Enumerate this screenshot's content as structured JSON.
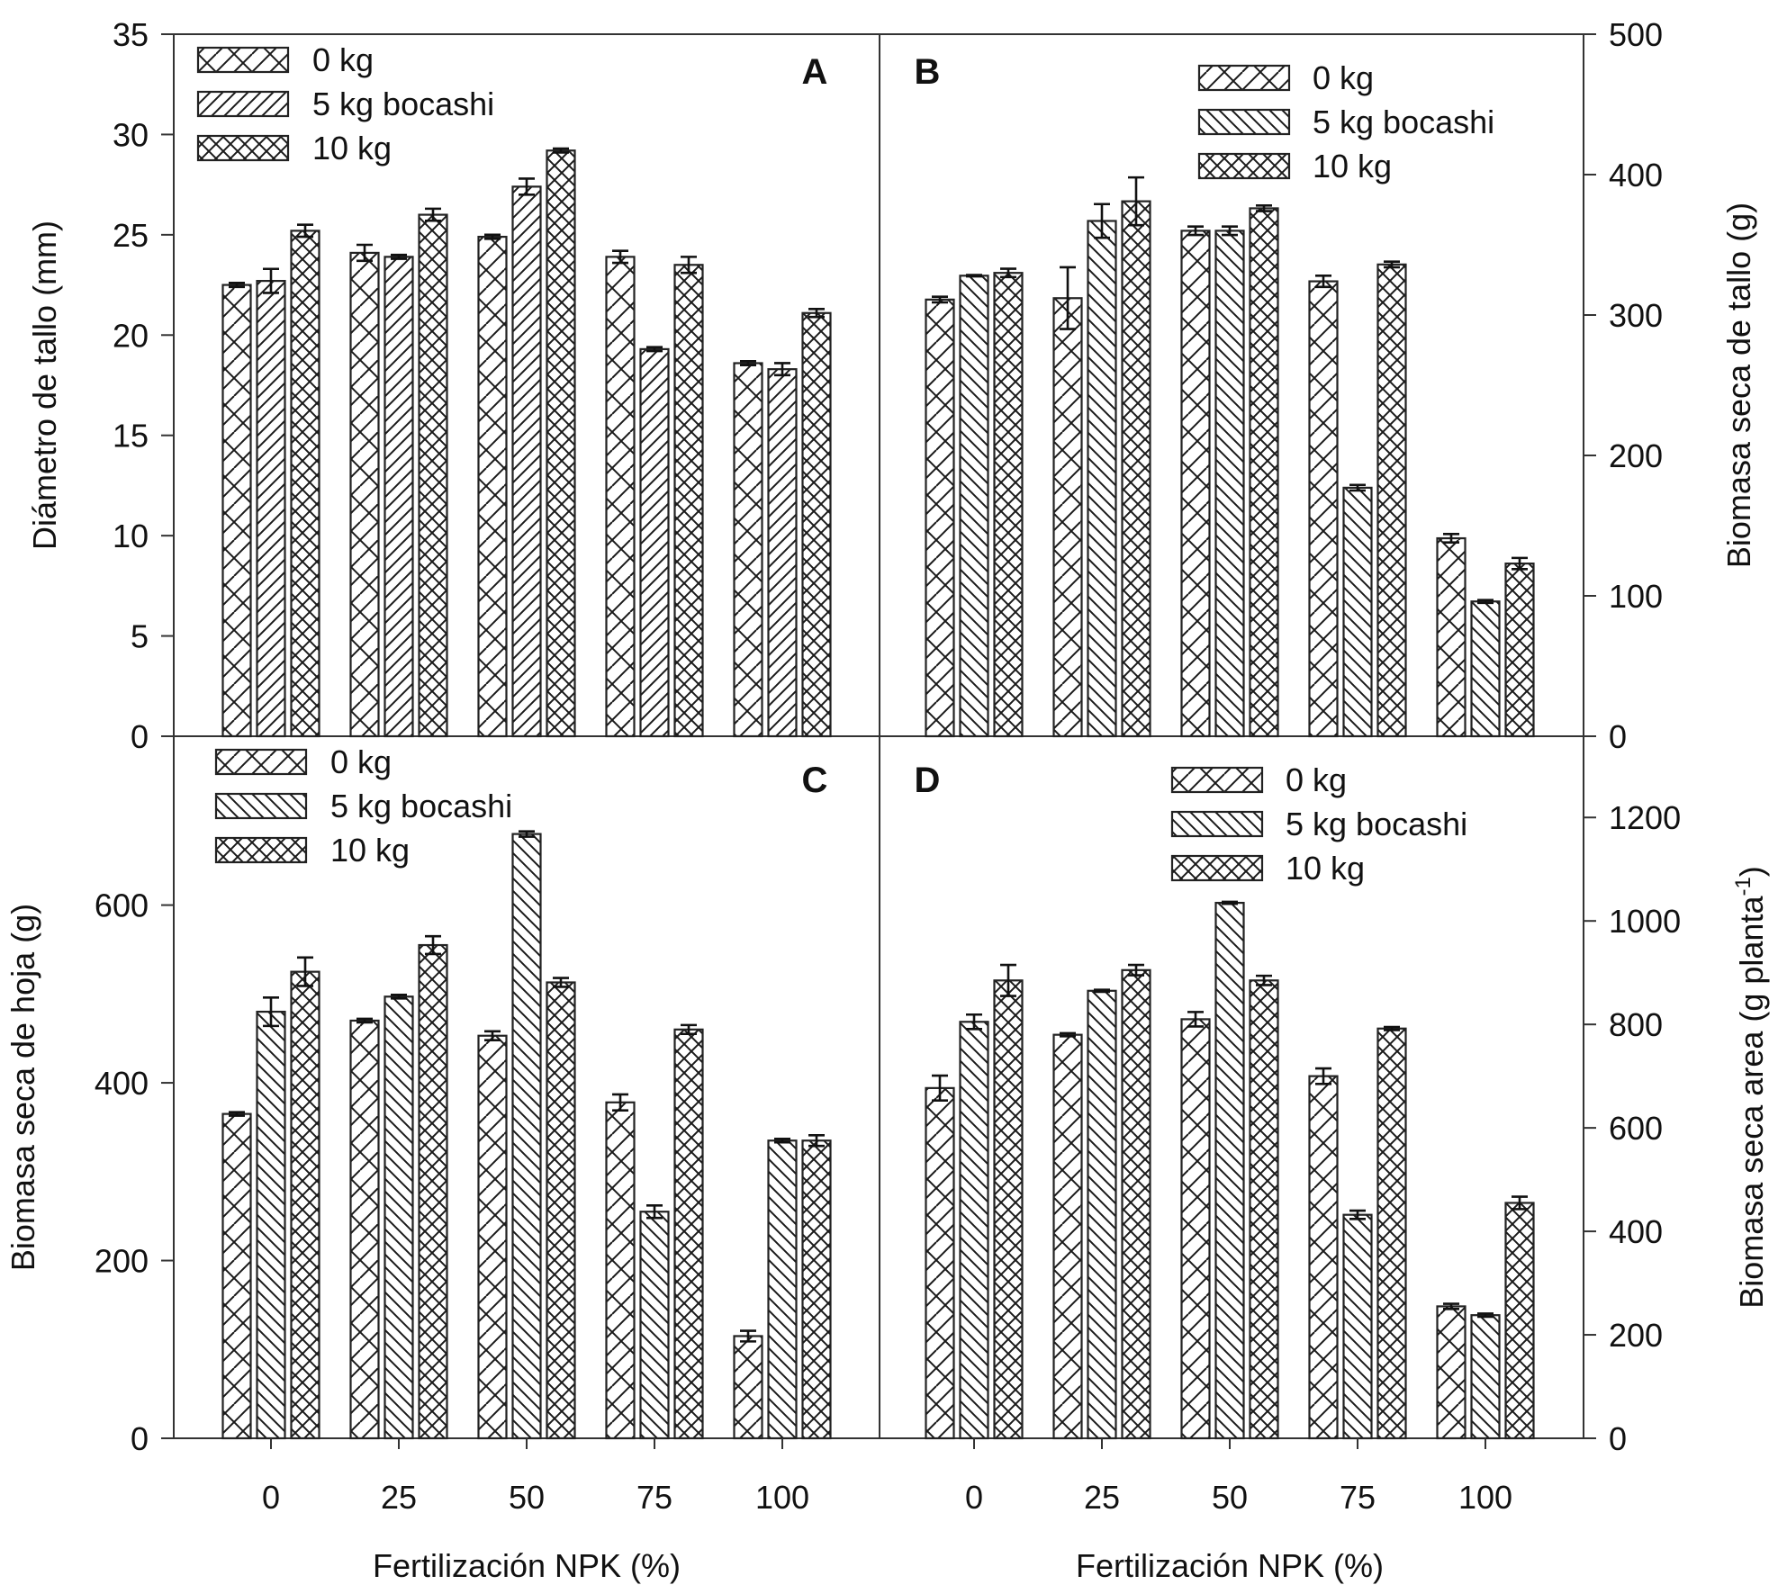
{
  "figure": {
    "x_axis_title": "Fertilización NPK (%)",
    "legend_patterns": {
      "0 kg": "wide-crosshatch",
      "5 kg bocashi": "diagonal-lines",
      "10 kg": "fine-crosshatch"
    }
  },
  "chart_data": [
    {
      "panel": "A",
      "type": "bar",
      "title": "",
      "panel_label": "A",
      "xlabel": "",
      "ylabel": "Diámetro de tallo (mm)",
      "y_axis_side": "left",
      "categories": [
        "0",
        "25",
        "50",
        "75",
        "100"
      ],
      "ylim": [
        0,
        35
      ],
      "yticks": [
        0,
        5,
        10,
        15,
        20,
        25,
        30,
        35
      ],
      "legend": [
        "0 kg",
        "5 kg bocashi",
        "10 kg"
      ],
      "legend_position": "top-left",
      "slash_direction": "forward",
      "series": [
        {
          "name": "0 kg",
          "values": [
            22.5,
            24.1,
            24.9,
            23.9,
            18.6
          ],
          "errors": [
            0.1,
            0.4,
            0.1,
            0.3,
            0.1
          ]
        },
        {
          "name": "5 kg bocashi",
          "values": [
            22.7,
            23.9,
            27.4,
            19.3,
            18.3
          ],
          "errors": [
            0.6,
            0.1,
            0.4,
            0.1,
            0.3
          ]
        },
        {
          "name": "10 kg",
          "values": [
            25.2,
            26.0,
            29.2,
            23.5,
            21.1
          ],
          "errors": [
            0.3,
            0.3,
            0.1,
            0.4,
            0.2
          ]
        }
      ],
      "grid": false
    },
    {
      "panel": "B",
      "type": "bar",
      "title": "",
      "panel_label": "B",
      "xlabel": "",
      "ylabel": "Biomasa seca de tallo (g)",
      "y_axis_side": "right",
      "categories": [
        "0",
        "25",
        "50",
        "75",
        "100"
      ],
      "ylim": [
        0,
        500
      ],
      "yticks": [
        0,
        100,
        200,
        300,
        400,
        500
      ],
      "legend": [
        "0 kg",
        "5 kg bocashi",
        "10 kg"
      ],
      "legend_position": "top-center",
      "slash_direction": "back",
      "series": [
        {
          "name": "0 kg",
          "values": [
            311,
            312,
            360,
            324,
            141
          ],
          "errors": [
            2,
            22,
            3,
            4,
            3
          ]
        },
        {
          "name": "5 kg bocashi",
          "values": [
            328,
            367,
            360,
            177,
            96
          ],
          "errors": [
            0.5,
            12,
            3,
            2,
            1
          ]
        },
        {
          "name": "10 kg",
          "values": [
            330,
            381,
            376,
            336,
            123
          ],
          "errors": [
            3,
            17,
            2,
            2,
            4
          ]
        }
      ],
      "grid": false
    },
    {
      "panel": "C",
      "type": "bar",
      "title": "",
      "panel_label": "C",
      "xlabel": "Fertilización NPK (%)",
      "ylabel": "Biomasa seca de hoja (g)",
      "y_axis_side": "left",
      "categories": [
        "0",
        "25",
        "50",
        "75",
        "100"
      ],
      "ylim": [
        0,
        790
      ],
      "yticks": [
        0,
        200,
        400,
        600
      ],
      "legend": [
        "0 kg",
        "5 kg bocashi",
        "10 kg"
      ],
      "legend_position": "top-left",
      "slash_direction": "back",
      "series": [
        {
          "name": "0 kg",
          "values": [
            365,
            470,
            453,
            378,
            115
          ],
          "errors": [
            2,
            2,
            5,
            9,
            6
          ]
        },
        {
          "name": "5 kg bocashi",
          "values": [
            480,
            497,
            680,
            255,
            335
          ],
          "errors": [
            16,
            2,
            3,
            7,
            2
          ]
        },
        {
          "name": "10 kg",
          "values": [
            525,
            555,
            513,
            460,
            335
          ],
          "errors": [
            16,
            10,
            5,
            5,
            6
          ]
        }
      ],
      "grid": false
    },
    {
      "panel": "D",
      "type": "bar",
      "title": "",
      "panel_label": "D",
      "xlabel": "Fertilización NPK (%)",
      "ylabel": "Biomasa seca area (g planta-1)",
      "y_axis_side": "right",
      "categories": [
        "0",
        "25",
        "50",
        "75",
        "100"
      ],
      "ylim": [
        0,
        1357
      ],
      "yticks": [
        0,
        200,
        400,
        600,
        800,
        1000,
        1200
      ],
      "legend": [
        "0 kg",
        "5 kg bocashi",
        "10 kg"
      ],
      "legend_position": "top-center",
      "slash_direction": "back",
      "series": [
        {
          "name": "0 kg",
          "values": [
            677,
            780,
            810,
            700,
            255
          ],
          "errors": [
            24,
            3,
            14,
            15,
            5
          ]
        },
        {
          "name": "5 kg bocashi",
          "values": [
            805,
            865,
            1035,
            432,
            238
          ],
          "errors": [
            14,
            2,
            2,
            8,
            3
          ]
        },
        {
          "name": "10 kg",
          "values": [
            885,
            905,
            885,
            792,
            455
          ],
          "errors": [
            30,
            10,
            9,
            3,
            12
          ]
        }
      ],
      "grid": false
    }
  ]
}
